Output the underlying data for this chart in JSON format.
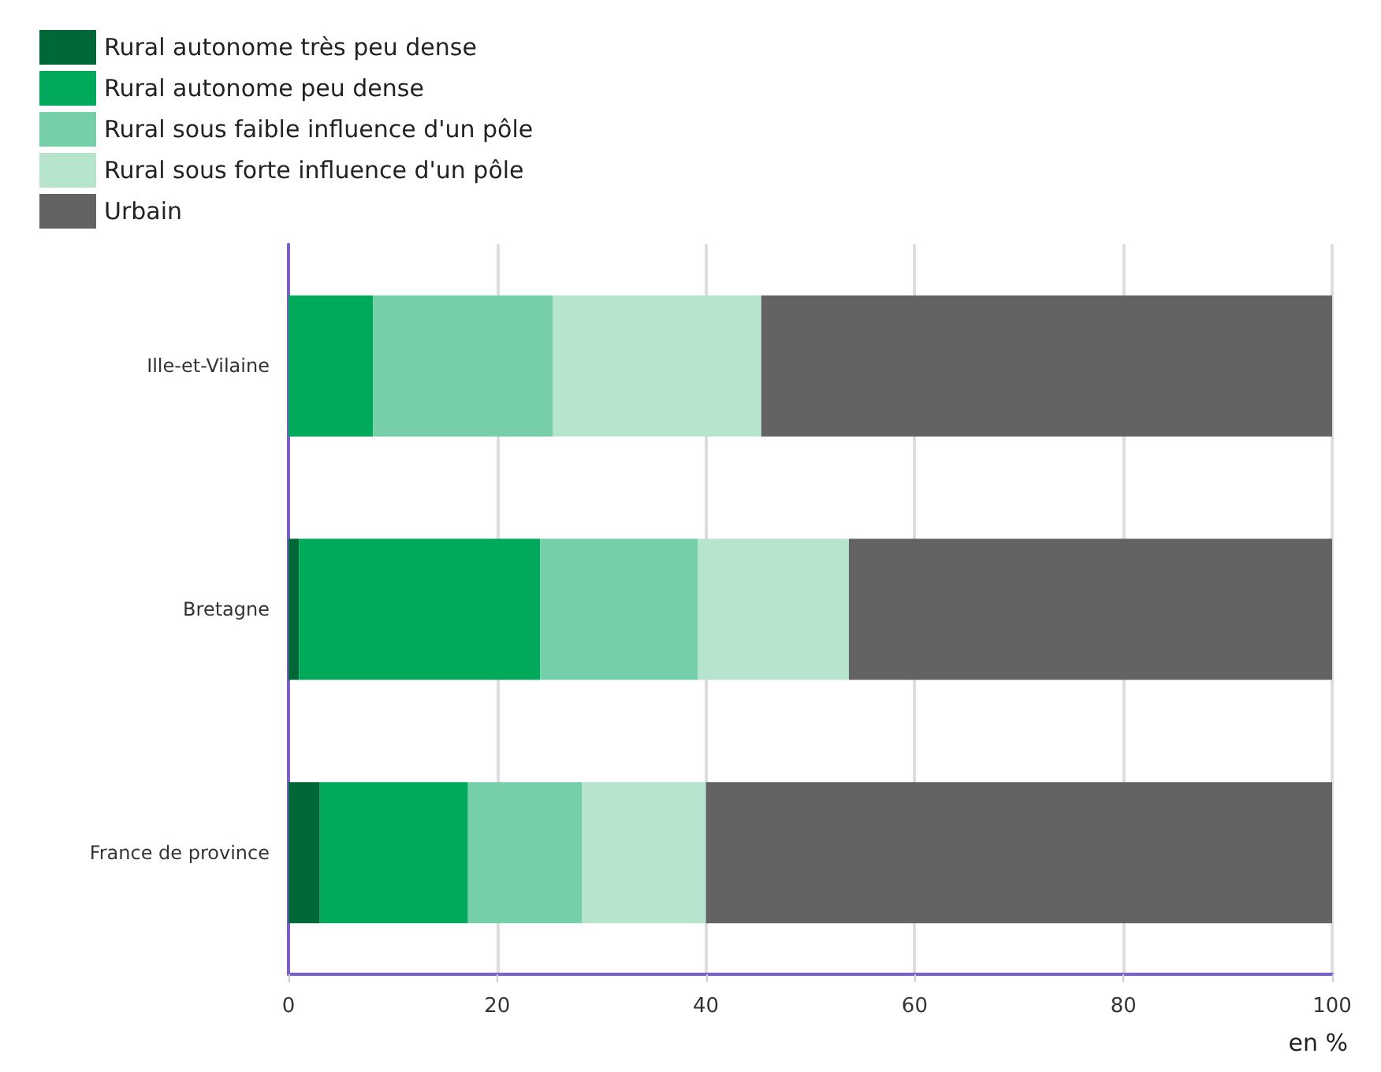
{
  "chart_data": {
    "type": "bar",
    "orientation": "horizontal",
    "stacked": true,
    "categories": [
      "Ille-et-Vilaine",
      "Bretagne",
      "France de province"
    ],
    "series": [
      {
        "name": "Rural autonome très peu dense",
        "color": "#006837",
        "values": [
          0,
          1.0,
          3.0
        ]
      },
      {
        "name": "Rural autonome peu dense",
        "color": "#00aa5a",
        "values": [
          8.1,
          23.1,
          14.2
        ]
      },
      {
        "name": "Rural sous faible influence d'un pôle",
        "color": "#75cfa8",
        "values": [
          17.2,
          15.1,
          10.9
        ]
      },
      {
        "name": "Rural sous forte influence d'un pôle",
        "color": "#b7e4cc",
        "values": [
          20.0,
          14.5,
          11.9
        ]
      },
      {
        "name": "Urbain",
        "color": "#636363",
        "values": [
          54.7,
          46.3,
          60.0
        ]
      }
    ],
    "xlim": [
      0,
      100
    ],
    "xticks": [
      0,
      20,
      40,
      60,
      80,
      100
    ],
    "xlabel": "en %",
    "grid": "x",
    "legend": "top left"
  }
}
